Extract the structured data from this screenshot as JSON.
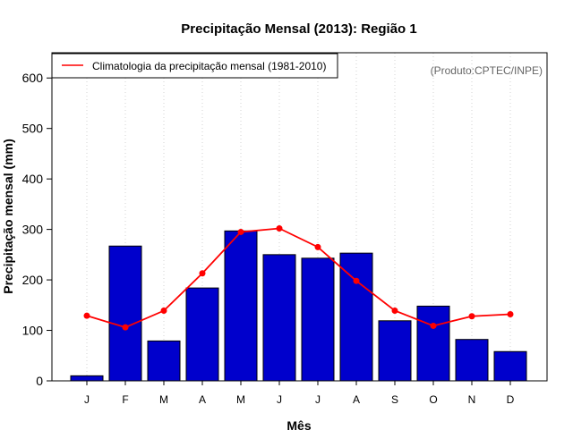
{
  "chart_data": {
    "type": "bar",
    "title": "Precipitação Mensal (2013): Região 1",
    "xlabel": "Mês",
    "ylabel": "Precipitação mensal (mm)",
    "categories": [
      "J",
      "F",
      "M",
      "A",
      "M",
      "J",
      "J",
      "A",
      "S",
      "O",
      "N",
      "D"
    ],
    "ylim": [
      0,
      650
    ],
    "yticks": [
      0,
      100,
      200,
      300,
      400,
      500,
      600
    ],
    "grid": "vertical dotted",
    "series": [
      {
        "name": "Precipitação mensal 2013",
        "type": "bar",
        "color": "#0000cc",
        "values": [
          10,
          267,
          79,
          184,
          297,
          250,
          243,
          253,
          119,
          148,
          82,
          58
        ]
      },
      {
        "name": "Climatologia da precipitação mensal (1981-2010)",
        "type": "line",
        "color": "#ff0000",
        "values": [
          129,
          106,
          139,
          213,
          295,
          302,
          265,
          198,
          139,
          109,
          128,
          132
        ]
      }
    ],
    "legend": {
      "position": "top-left",
      "label": "Climatologia da precipitação mensal (1981-2010)"
    },
    "annotation": "(Produto:CPTEC/INPE)"
  }
}
